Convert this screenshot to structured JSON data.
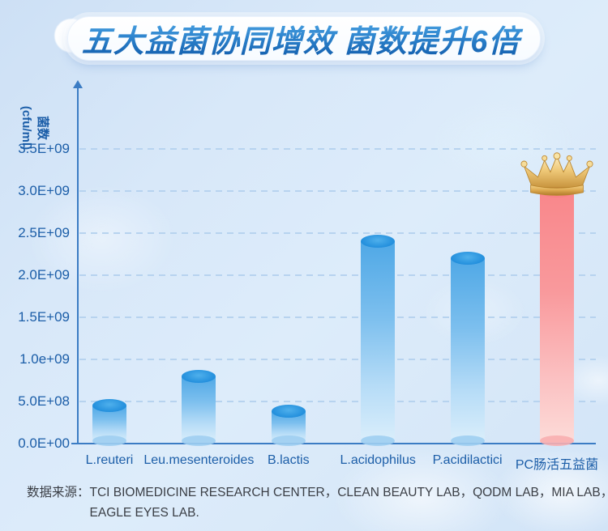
{
  "banner": {
    "title": "五大益菌协同增效 菌数提升6倍"
  },
  "chart_data": {
    "type": "bar",
    "title": "五大益菌协同增效 菌数提升6倍",
    "ylabel_line1": "菌数",
    "ylabel_line2": "(cfu/ml)",
    "categories": [
      "L.reuteri",
      "Leu.mesenteroides",
      "B.lactis",
      "L.acidophilus",
      "P.acidilactici",
      "PC肠活五益菌"
    ],
    "values": [
      450000000,
      800000000,
      380000000,
      2400000000,
      2200000000,
      3000000000
    ],
    "ylim": [
      0,
      3500000000
    ],
    "ytick_step": 500000000,
    "ytick_labels": [
      "0.0E+00",
      "5.0E+08",
      "1.0e+09",
      "1.5E+09",
      "2.0E+09",
      "2.5E+09",
      "3.0E+09",
      "3.5E+09"
    ],
    "grid": "horizontal-dashed",
    "legend": "none",
    "highlight_index": 5,
    "highlight_marker": "gold-crown"
  },
  "source": {
    "label": "数据来源：",
    "line1": "TCI BIOMEDICINE RESEARCH CENTER，CLEAN BEAUTY LAB，QODM LAB，MIA LAB，",
    "line2": "EAGLE EYES LAB."
  },
  "colors": {
    "title_gradient_top": "#54ABE8",
    "title_gradient_bottom": "#0E58A8",
    "axis": "#3B7CC4",
    "tick_label": "#1C5EA8",
    "gridline": "#B7D3EF",
    "bar_blue_top": "#2D98E1",
    "bar_blue_body_start": "#4FA8E6",
    "bar_blue_body_end": "#DAEEFB",
    "bar_red_top": "#F87F85",
    "bar_red_body_start": "#F9878B",
    "bar_red_body_end": "#FBD8D6",
    "crown_gold": "#E2B45F",
    "source_text": "#3A3E45",
    "background": "#D7E7F9"
  }
}
